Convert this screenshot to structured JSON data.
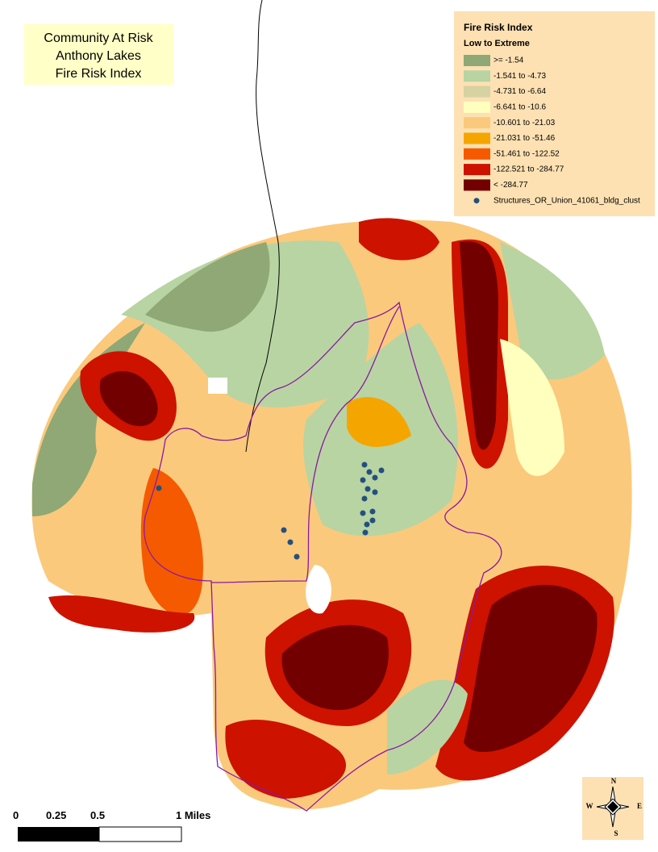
{
  "title_lines": [
    "Community At Risk",
    "Anthony Lakes",
    "Fire Risk Index"
  ],
  "legend": {
    "title": "Fire Risk Index",
    "subtitle": "Low to Extreme",
    "items": [
      {
        "label": ">= -1.54",
        "color": "#8fa876"
      },
      {
        "label": "-1.541  to  -4.73",
        "color": "#b8d4a3"
      },
      {
        "label": "-4.731  to  -6.64",
        "color": "#d6d2a2"
      },
      {
        "label": "-6.641  to  -10.6",
        "color": "#ffffbe"
      },
      {
        "label": "-10.601  to  -21.03",
        "color": "#fbc97c"
      },
      {
        "label": "-21.031  to  -51.46",
        "color": "#f5a500"
      },
      {
        "label": "-51.461  to  -122.52",
        "color": "#f55a00"
      },
      {
        "label": "-122.521  to  -284.77",
        "color": "#cd1200"
      },
      {
        "label": "< -284.77",
        "color": "#730000"
      }
    ],
    "points_label": "Structures_OR_Union_41061_bldg_clust"
  },
  "scale_bar": {
    "labels": [
      "0",
      "0.25",
      "0.5",
      "1 Miles"
    ]
  },
  "compass": {
    "n": "N",
    "s": "S",
    "e": "E",
    "w": "W"
  }
}
